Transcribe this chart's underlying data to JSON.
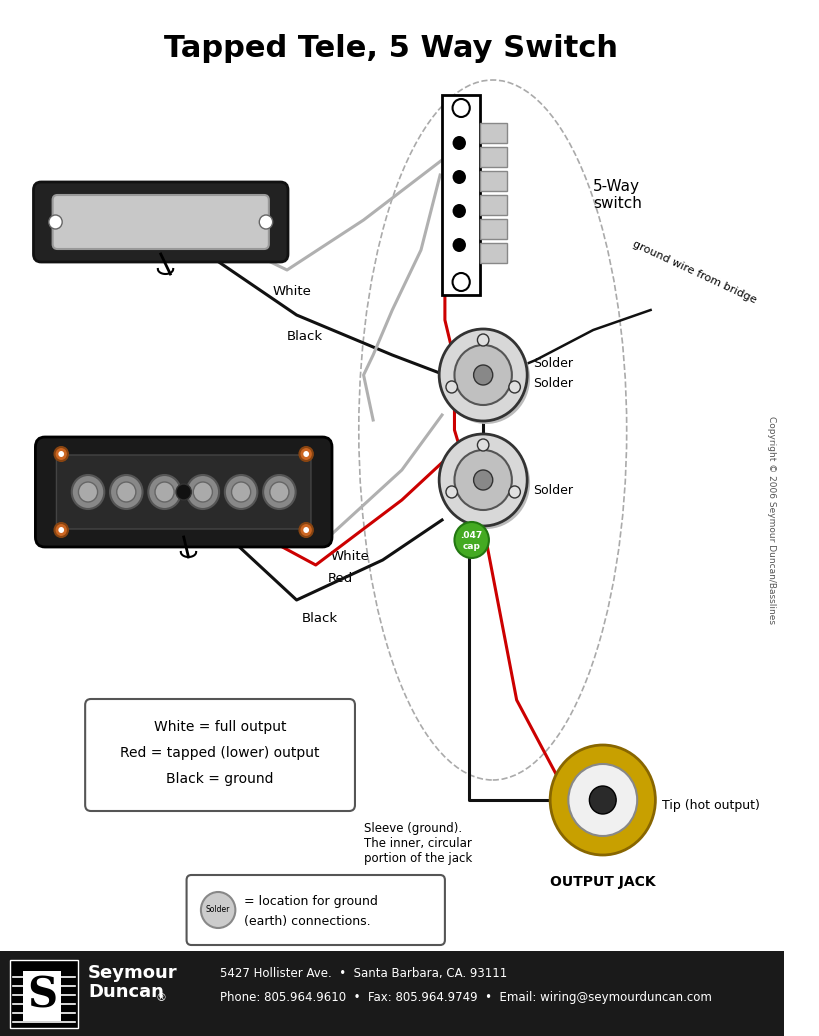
{
  "title": "Tapped Tele, 5 Way Switch",
  "title_fontsize": 22,
  "title_fontweight": "bold",
  "bg_color": "#ffffff",
  "footer_line1": "5427 Hollister Ave.  •  Santa Barbara, CA. 93111",
  "footer_line2": "Phone: 805.964.9610  •  Fax: 805.964.9749  •  Email: wiring@seymourduncan.com",
  "legend_box_text": [
    "White = full output",
    "Red = tapped (lower) output",
    "Black = ground"
  ],
  "switch_label": "5-Way\nswitch",
  "output_jack_label": "OUTPUT JACK",
  "tip_label": "Tip (hot output)",
  "sleeve_label": "Sleeve (ground).\nThe inner, circular\nportion of the jack",
  "copyright_text": "Copyright © 2006 Seymour Duncan/Basslines",
  "white_label_neck": "White",
  "black_label_neck": "Black",
  "white_label_bridge": "White",
  "red_label_bridge": "Red",
  "black_label_bridge": "Black",
  "ground_wire_label": "ground wire from bridge",
  "solder_label1": "Solder",
  "solder_label2": "Solder",
  "solder_label3": "Solder",
  "solder_legend": "= location for ground\n(earth) connections."
}
